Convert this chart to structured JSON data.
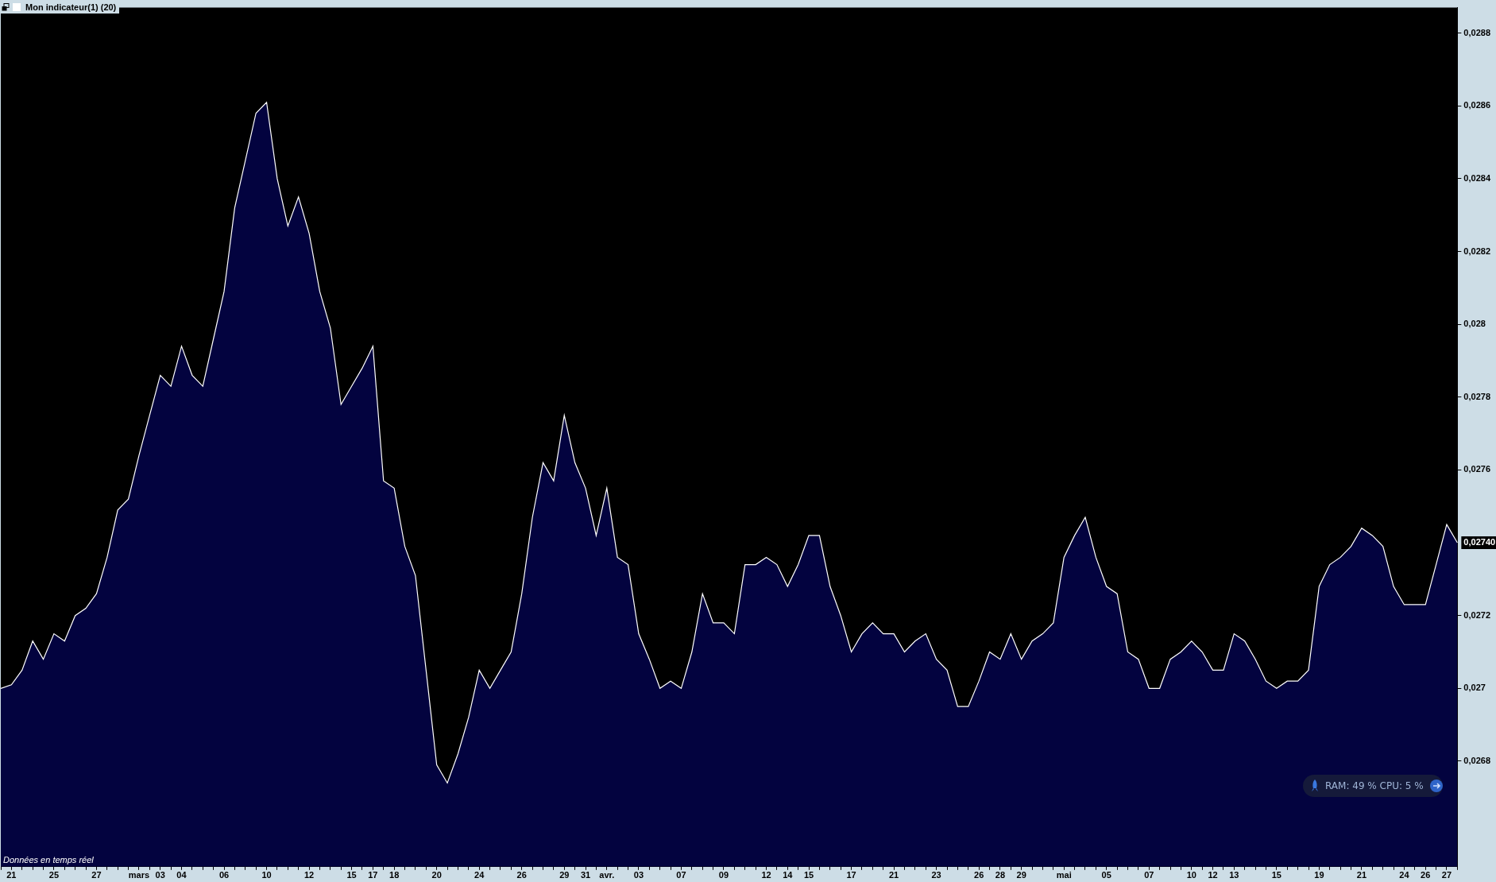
{
  "chart_data": {
    "type": "area",
    "title": "Mon indicateur(1) (20)",
    "categories": [
      null,
      "21",
      null,
      null,
      null,
      "25",
      null,
      null,
      null,
      "27",
      null,
      null,
      null,
      "mars",
      null,
      "03",
      null,
      "04",
      null,
      null,
      null,
      "06",
      null,
      null,
      null,
      "10",
      null,
      null,
      null,
      "12",
      null,
      null,
      null,
      "15",
      null,
      "17",
      null,
      "18",
      null,
      null,
      null,
      "20",
      null,
      null,
      null,
      "24",
      null,
      null,
      null,
      "26",
      null,
      null,
      null,
      "29",
      null,
      "31",
      null,
      "avr.",
      null,
      null,
      "03",
      null,
      null,
      null,
      "07",
      null,
      null,
      null,
      "09",
      null,
      null,
      null,
      "12",
      null,
      "14",
      null,
      "15",
      null,
      null,
      null,
      "17",
      null,
      null,
      null,
      "21",
      null,
      null,
      null,
      "23",
      null,
      null,
      null,
      "26",
      null,
      "28",
      null,
      "29",
      null,
      null,
      null,
      "mai",
      null,
      null,
      null,
      "05",
      null,
      null,
      null,
      "07",
      null,
      null,
      null,
      "10",
      null,
      "12",
      null,
      "13",
      null,
      null,
      null,
      "15",
      null,
      null,
      null,
      "19",
      null,
      null,
      null,
      "21",
      null,
      null,
      null,
      "24",
      null,
      "26",
      null,
      "27",
      null
    ],
    "values": [
      0.027,
      0.02701,
      0.02705,
      0.02713,
      0.02708,
      0.02715,
      0.02713,
      0.0272,
      0.02722,
      0.02726,
      0.02736,
      0.02749,
      0.02752,
      0.02764,
      0.02775,
      0.02786,
      0.02783,
      0.02794,
      0.02786,
      0.02783,
      0.02796,
      0.02809,
      0.02832,
      0.02845,
      0.02858,
      0.02861,
      0.0284,
      0.02827,
      0.02835,
      0.02825,
      0.02809,
      0.02799,
      0.02778,
      0.02783,
      0.02788,
      0.02794,
      0.02757,
      0.02755,
      0.02739,
      0.02731,
      0.02705,
      0.02679,
      0.02674,
      0.02682,
      0.02692,
      0.02705,
      0.027,
      0.02705,
      0.0271,
      0.02726,
      0.02747,
      0.02762,
      0.02757,
      0.02775,
      0.02762,
      0.02755,
      0.02742,
      0.02755,
      0.02736,
      0.02734,
      0.02715,
      0.02708,
      0.027,
      0.02702,
      0.027,
      0.0271,
      0.02726,
      0.02718,
      0.02718,
      0.02715,
      0.02734,
      0.02734,
      0.02736,
      0.02734,
      0.02728,
      0.02734,
      0.02742,
      0.02742,
      0.02728,
      0.0272,
      0.0271,
      0.02715,
      0.02718,
      0.02715,
      0.02715,
      0.0271,
      0.02713,
      0.02715,
      0.02708,
      0.02705,
      0.02695,
      0.02695,
      0.02702,
      0.0271,
      0.02708,
      0.02715,
      0.02708,
      0.02713,
      0.02715,
      0.02718,
      0.02736,
      0.02742,
      0.02747,
      0.02736,
      0.02728,
      0.02726,
      0.0271,
      0.02708,
      0.027,
      0.027,
      0.02708,
      0.0271,
      0.02713,
      0.0271,
      0.02705,
      0.02705,
      0.02715,
      0.02713,
      0.02708,
      0.02702,
      0.027,
      0.02702,
      0.02702,
      0.02705,
      0.02728,
      0.02734,
      0.02736,
      0.02739,
      0.02744,
      0.02742,
      0.02739,
      0.02728,
      0.02723,
      0.02723,
      0.02723,
      0.02734,
      0.02745,
      0.0274
    ],
    "color": "#03033f",
    "ylim": [
      0.02651,
      0.02887
    ],
    "yticks": [
      {
        "value": 0.0268,
        "label": "0,0268"
      },
      {
        "value": 0.027,
        "label": "0,027"
      },
      {
        "value": 0.0272,
        "label": "0,0272"
      },
      {
        "value": 0.0276,
        "label": "0,0276"
      },
      {
        "value": 0.0278,
        "label": "0,0278"
      },
      {
        "value": 0.028,
        "label": "0,028"
      },
      {
        "value": 0.0282,
        "label": "0,0282"
      },
      {
        "value": 0.0284,
        "label": "0,0284"
      },
      {
        "value": 0.0286,
        "label": "0,0286"
      },
      {
        "value": 0.0288,
        "label": "0,0288"
      }
    ],
    "grid": false,
    "legend": false,
    "annotations": [
      "0,02740",
      "Données en temps réel",
      "RAM: 49 % CPU: 5 %"
    ]
  }
}
